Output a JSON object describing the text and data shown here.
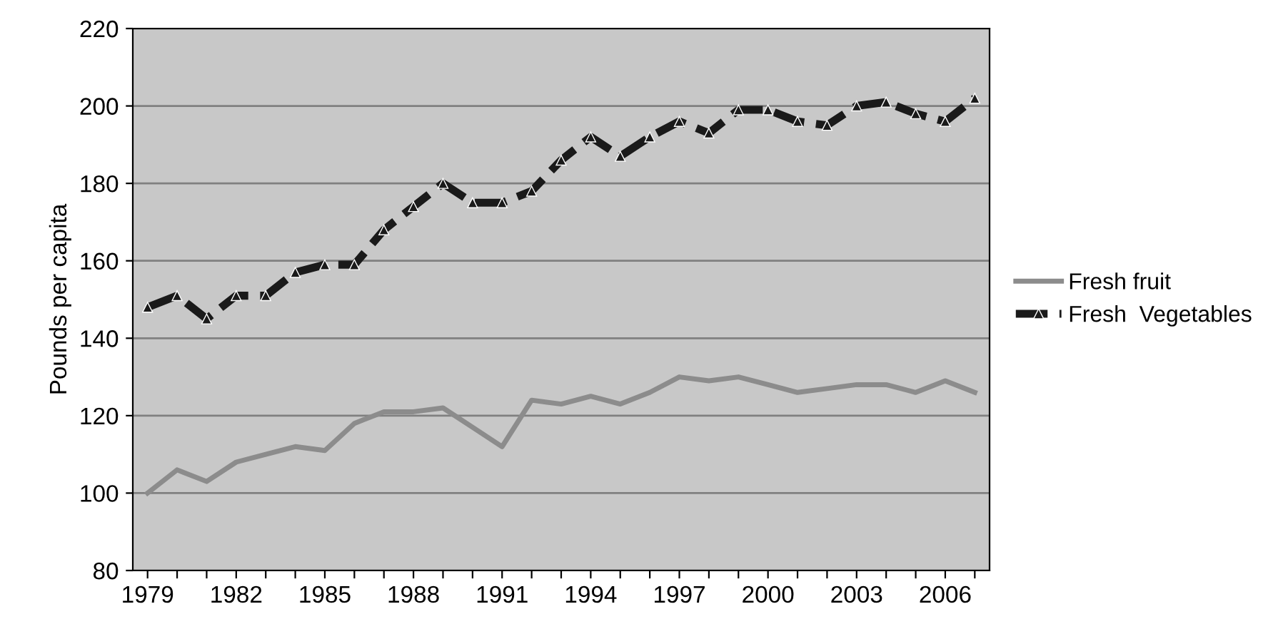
{
  "chart_data": {
    "type": "line",
    "ylabel": "Pounds per capita",
    "categories": [
      "1979",
      null,
      null,
      "1982",
      null,
      null,
      "1985",
      null,
      null,
      "1988",
      null,
      null,
      "1991",
      null,
      null,
      "1994",
      null,
      null,
      "1997",
      null,
      null,
      "2000",
      null,
      null,
      "2003",
      null,
      null,
      "2006",
      null
    ],
    "series": [
      {
        "name": "Fresh fruit",
        "color": "#8c8c8c",
        "line_style": "solid",
        "marker": "none",
        "values": [
          100,
          106,
          103,
          108,
          110,
          112,
          111,
          118,
          121,
          121,
          122,
          117,
          112,
          124,
          123,
          125,
          123,
          126,
          130,
          129,
          130,
          128,
          126,
          127,
          128,
          128,
          126,
          129,
          126
        ]
      },
      {
        "name": "Fresh  Vegetables",
        "color": "#1a1a1a",
        "line_style": "dashed",
        "marker": "triangle",
        "values": [
          148,
          151,
          145,
          151,
          151,
          157,
          159,
          159,
          168,
          174,
          180,
          175,
          175,
          178,
          186,
          192,
          187,
          192,
          196,
          193,
          199,
          199,
          196,
          195,
          200,
          201,
          198,
          196,
          202
        ]
      }
    ],
    "ylim": [
      80,
      220
    ],
    "yticks": [
      80,
      100,
      120,
      140,
      160,
      180,
      200,
      220
    ],
    "grid": "y",
    "legend": "right"
  }
}
